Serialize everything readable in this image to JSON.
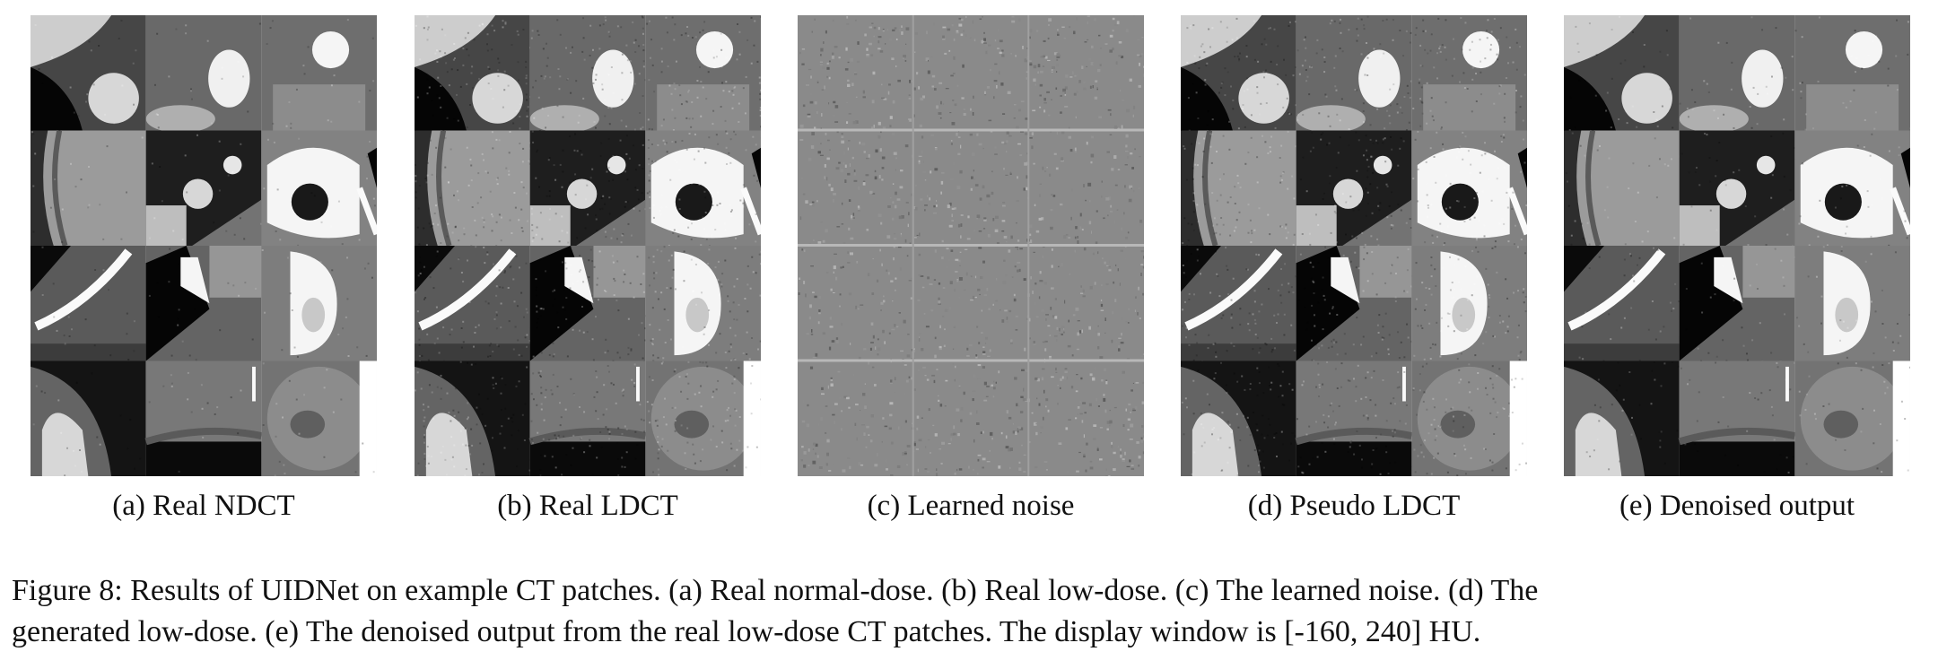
{
  "panels": [
    {
      "id": "a",
      "caption": "(a) Real NDCT",
      "kind": "ct",
      "noise": 0.15,
      "contrast": 1.0
    },
    {
      "id": "b",
      "caption": "(b) Real LDCT",
      "kind": "ct",
      "noise": 0.75,
      "contrast": 1.0
    },
    {
      "id": "c",
      "caption": "(c) Learned noise",
      "kind": "noise",
      "noise": 0.0,
      "contrast": 0.0
    },
    {
      "id": "d",
      "caption": "(d) Pseudo LDCT",
      "kind": "ct",
      "noise": 0.7,
      "contrast": 1.0
    },
    {
      "id": "e",
      "caption": "(e) Denoised output",
      "kind": "ct",
      "noise": 0.25,
      "contrast": 0.95
    }
  ],
  "figure_caption": {
    "line1": "Figure 8: Results of UIDNet on example CT patches. (a) Real normal-dose. (b) Real low-dose. (c) The learned noise. (d) The",
    "line2": "generated low-dose. (e) The denoised output from the real low-dose CT patches. The display window is [-160, 240] HU."
  }
}
